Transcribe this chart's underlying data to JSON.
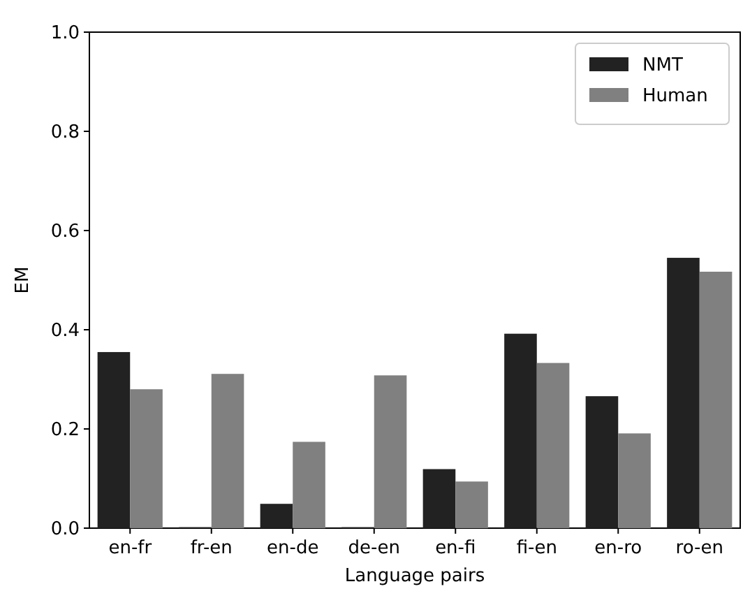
{
  "chart_data": {
    "type": "bar",
    "xlabel": "Language pairs",
    "ylabel": "EM",
    "categories": [
      "en-fr",
      "fr-en",
      "en-de",
      "de-en",
      "en-fi",
      "fi-en",
      "en-ro",
      "ro-en"
    ],
    "series": [
      {
        "name": "NMT",
        "color": "#222222",
        "values": [
          0.355,
          0.002,
          0.049,
          0.002,
          0.119,
          0.392,
          0.266,
          0.545
        ]
      },
      {
        "name": "Human",
        "color": "#808080",
        "values": [
          0.28,
          0.311,
          0.174,
          0.308,
          0.094,
          0.333,
          0.191,
          0.517
        ]
      }
    ],
    "ylim": [
      0,
      1
    ],
    "yticks": [
      {
        "value": 0,
        "label": "0.0"
      },
      {
        "value": 0.2,
        "label": "0.2"
      },
      {
        "value": 0.4,
        "label": "0.4"
      },
      {
        "value": 0.6,
        "label": "0.6"
      },
      {
        "value": 0.8,
        "label": "0.8"
      },
      {
        "value": 1,
        "label": "1.0"
      }
    ],
    "grid": false,
    "legend": "top right"
  }
}
